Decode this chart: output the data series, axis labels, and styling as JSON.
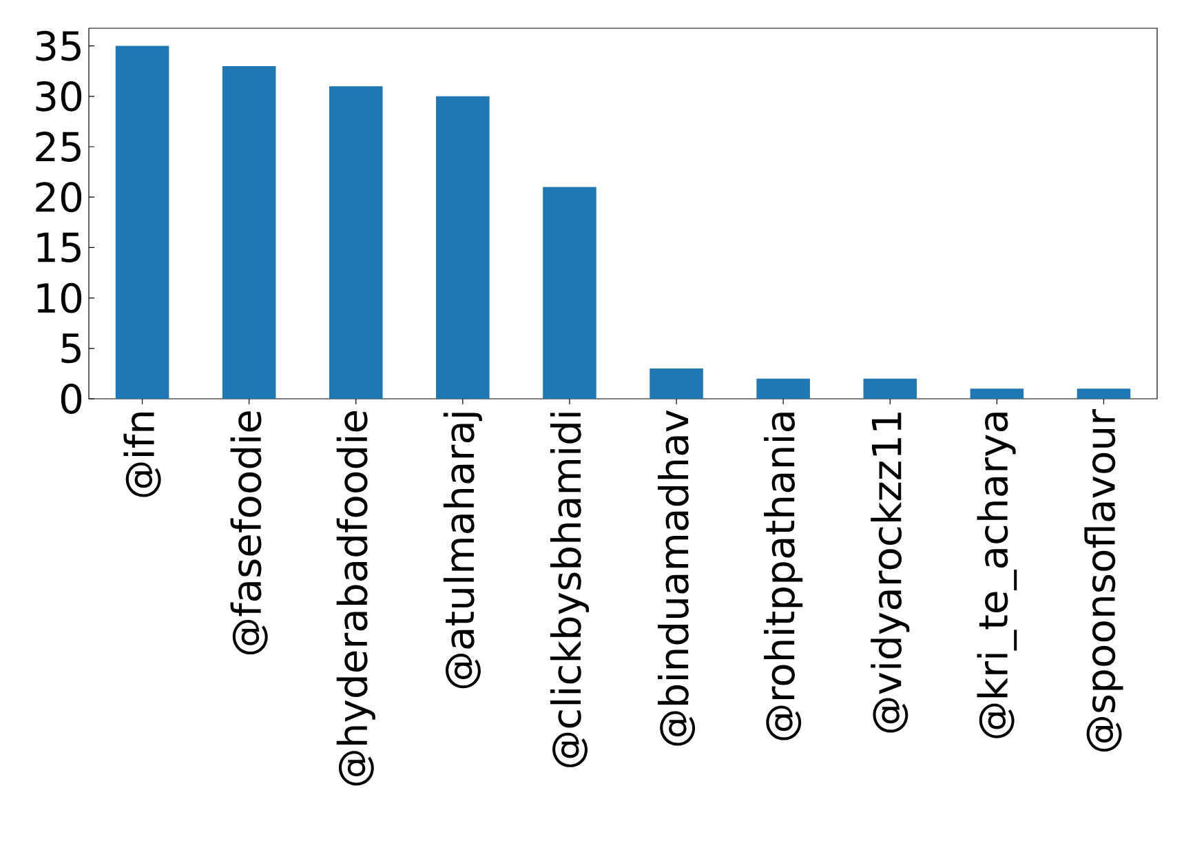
{
  "chart_data": {
    "type": "bar",
    "categories": [
      "@ifn",
      "@fasefoodie",
      "@hyderabadfoodie",
      "@atulmaharaj",
      "@clickbysbhamidi",
      "@binduamadhav",
      "@rohitppathania",
      "@vidyarockzz11",
      "@kri_te_acharya",
      "@spoonsoflavour"
    ],
    "values": [
      35,
      33,
      31,
      30,
      21,
      3,
      2,
      2,
      1,
      1
    ],
    "color": "#1f77b4",
    "ylim": [
      0,
      36.75
    ],
    "yticks": [
      0,
      5,
      10,
      15,
      20,
      25,
      30,
      35
    ]
  }
}
